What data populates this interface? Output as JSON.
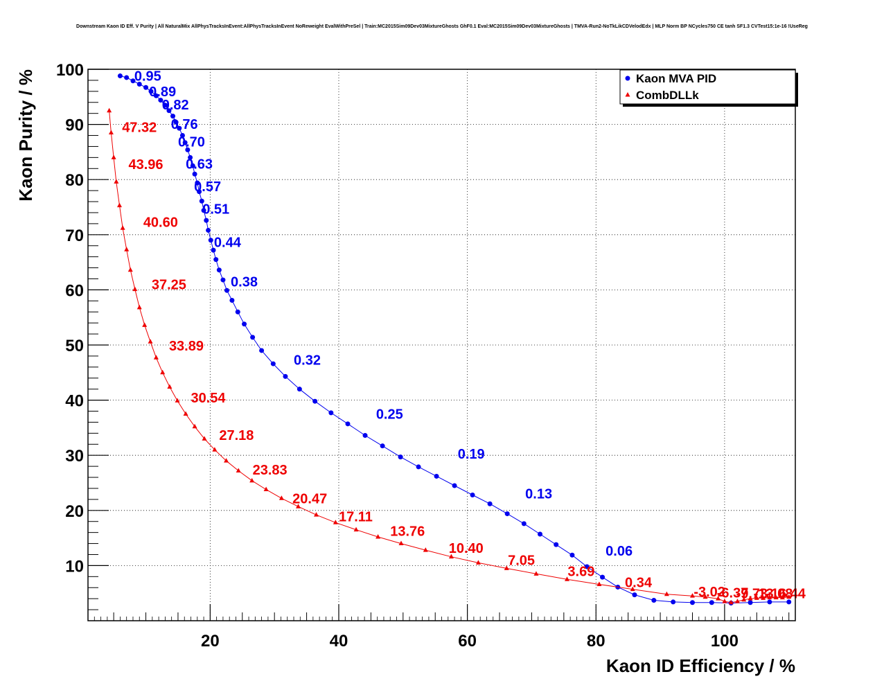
{
  "chart_data": {
    "type": "line",
    "title": "Downstream Kaon ID Eff. V Purity | All NaturalMix AllPhysTracksInEvent:AllPhysTracksInEvent NoReweight EvalWithPreSel | Train:MC2015Sim09Dev03MixtureGhosts GhF0.1 Eval:MC2015Sim09Dev03MixtureGhosts | TMVA-Run2-NoTkLikCDVelodEdx | MLP Norm BP NCycles750 CE tanh SF1.3 CVTest15:1e-16 !UseReg",
    "xlabel": "Kaon ID Efficiency / %",
    "ylabel": "Kaon Purity / %",
    "xlim": [
      1,
      111
    ],
    "ylim": [
      0,
      100
    ],
    "xticks": [
      "20",
      "40",
      "60",
      "80",
      "100"
    ],
    "yticks": [
      "10",
      "20",
      "30",
      "40",
      "50",
      "60",
      "70",
      "80",
      "90",
      "100"
    ],
    "grid": true,
    "legend_position": "top-right",
    "series": [
      {
        "name": "Kaon MVA PID",
        "color": "#0000ee",
        "marker": "circle",
        "points": [
          [
            6,
            98.8
          ],
          [
            7,
            98.5
          ],
          [
            8,
            97.9
          ],
          [
            9,
            97.3
          ],
          [
            10,
            96.7
          ],
          [
            10.8,
            96.0
          ],
          [
            11.6,
            95.2
          ],
          [
            12.3,
            94.4
          ],
          [
            13,
            93.5
          ],
          [
            13.6,
            92.5
          ],
          [
            14.2,
            91.5
          ],
          [
            14.7,
            90.4
          ],
          [
            15.2,
            89.3
          ],
          [
            15.7,
            88.0
          ],
          [
            16.1,
            86.7
          ],
          [
            16.5,
            85.4
          ],
          [
            16.9,
            84.0
          ],
          [
            17.3,
            82.5
          ],
          [
            17.6,
            81.0
          ],
          [
            18,
            79.4
          ],
          [
            18.3,
            77.8
          ],
          [
            18.7,
            76.1
          ],
          [
            19,
            74.4
          ],
          [
            19.4,
            72.6
          ],
          [
            19.7,
            70.8
          ],
          [
            20.1,
            69
          ],
          [
            20.5,
            67.2
          ],
          [
            20.9,
            65.5
          ],
          [
            21.4,
            63.6
          ],
          [
            22,
            61.8
          ],
          [
            22.6,
            59.9
          ],
          [
            23.4,
            58.1
          ],
          [
            24.3,
            56
          ],
          [
            25.3,
            53.8
          ],
          [
            26.6,
            51.4
          ],
          [
            28,
            49
          ],
          [
            29.8,
            46.6
          ],
          [
            31.7,
            44.3
          ],
          [
            33.9,
            42
          ],
          [
            36.3,
            39.8
          ],
          [
            38.8,
            37.7
          ],
          [
            41.4,
            35.7
          ],
          [
            44.1,
            33.6
          ],
          [
            46.8,
            31.7
          ],
          [
            49.6,
            29.7
          ],
          [
            52.4,
            27.9
          ],
          [
            55.2,
            26.2
          ],
          [
            58,
            24.5
          ],
          [
            60.8,
            22.8
          ],
          [
            63.5,
            21.2
          ],
          [
            66.2,
            19.4
          ],
          [
            68.8,
            17.6
          ],
          [
            71.3,
            15.7
          ],
          [
            73.8,
            13.8
          ],
          [
            76.3,
            11.9
          ],
          [
            78.6,
            9.8
          ],
          [
            81,
            7.9
          ],
          [
            83.4,
            6.1
          ],
          [
            86,
            4.7
          ],
          [
            89,
            3.7
          ],
          [
            92,
            3.4
          ],
          [
            95,
            3.3
          ],
          [
            98,
            3.3
          ],
          [
            101,
            3.2
          ],
          [
            104,
            3.3
          ],
          [
            107,
            3.4
          ],
          [
            110,
            3.4
          ]
        ],
        "cut_labels": [
          {
            "text": "0.95",
            "x": 8.2,
            "y": 97.9
          },
          {
            "text": "0.89",
            "x": 10.5,
            "y": 95.1
          },
          {
            "text": "0.82",
            "x": 12.5,
            "y": 92.7
          },
          {
            "text": "0.76",
            "x": 13.9,
            "y": 89.2
          },
          {
            "text": "0.70",
            "x": 15,
            "y": 86
          },
          {
            "text": "0.63",
            "x": 16.2,
            "y": 82
          },
          {
            "text": "0.57",
            "x": 17.5,
            "y": 77.9
          },
          {
            "text": "0.51",
            "x": 18.8,
            "y": 73.8
          },
          {
            "text": "0.44",
            "x": 20.6,
            "y": 67.8
          },
          {
            "text": "0.38",
            "x": 23.2,
            "y": 60.6
          },
          {
            "text": "0.32",
            "x": 33,
            "y": 46.4
          },
          {
            "text": "0.25",
            "x": 45.8,
            "y": 36.6
          },
          {
            "text": "0.19",
            "x": 58.5,
            "y": 29.4
          },
          {
            "text": "0.13",
            "x": 69,
            "y": 22.2
          },
          {
            "text": "0.06",
            "x": 81.5,
            "y": 11.8
          }
        ]
      },
      {
        "name": "CombDLLk",
        "color": "#ee0000",
        "marker": "triangle",
        "points": [
          [
            4.3,
            92.5
          ],
          [
            4.6,
            88.5
          ],
          [
            5,
            84
          ],
          [
            5.4,
            79.6
          ],
          [
            5.9,
            75.3
          ],
          [
            6.4,
            71.2
          ],
          [
            7,
            67.3
          ],
          [
            7.6,
            63.6
          ],
          [
            8.3,
            60.1
          ],
          [
            9,
            56.8
          ],
          [
            9.8,
            53.6
          ],
          [
            10.7,
            50.6
          ],
          [
            11.6,
            47.7
          ],
          [
            12.6,
            45
          ],
          [
            13.7,
            42.4
          ],
          [
            14.9,
            39.9
          ],
          [
            16.2,
            37.5
          ],
          [
            17.6,
            35.2
          ],
          [
            19.1,
            33
          ],
          [
            20.7,
            31
          ],
          [
            22.5,
            29
          ],
          [
            24.4,
            27.2
          ],
          [
            26.5,
            25.4
          ],
          [
            28.7,
            23.8
          ],
          [
            31.1,
            22.2
          ],
          [
            33.7,
            20.7
          ],
          [
            36.5,
            19.2
          ],
          [
            39.5,
            17.8
          ],
          [
            42.7,
            16.5
          ],
          [
            46.1,
            15.2
          ],
          [
            49.7,
            14
          ],
          [
            53.5,
            12.8
          ],
          [
            57.5,
            11.6
          ],
          [
            61.7,
            10.5
          ],
          [
            66.1,
            9.5
          ],
          [
            70.7,
            8.5
          ],
          [
            75.5,
            7.5
          ],
          [
            80.5,
            6.6
          ],
          [
            85.7,
            5.7
          ],
          [
            91,
            4.8
          ],
          [
            95,
            4.5
          ],
          [
            97,
            4.3
          ],
          [
            99,
            4
          ],
          [
            100,
            3.5
          ],
          [
            101,
            3.3
          ],
          [
            102,
            3.5
          ],
          [
            103,
            3.8
          ],
          [
            104,
            4
          ],
          [
            105,
            4.1
          ],
          [
            106,
            4.1
          ],
          [
            107,
            4.2
          ],
          [
            108,
            4.2
          ],
          [
            109,
            4.2
          ],
          [
            110,
            4.3
          ]
        ],
        "cut_labels": [
          {
            "text": "47.32",
            "x": 6.3,
            "y": 88.6
          },
          {
            "text": "43.96",
            "x": 7.3,
            "y": 81.9
          },
          {
            "text": "40.60",
            "x": 9.6,
            "y": 71.4
          },
          {
            "text": "37.25",
            "x": 10.9,
            "y": 60.1
          },
          {
            "text": "33.89",
            "x": 13.6,
            "y": 49
          },
          {
            "text": "30.54",
            "x": 17,
            "y": 39.6
          },
          {
            "text": "27.18",
            "x": 21.4,
            "y": 32.8
          },
          {
            "text": "23.83",
            "x": 26.6,
            "y": 26.5
          },
          {
            "text": "20.47",
            "x": 32.8,
            "y": 21.3
          },
          {
            "text": "17.11",
            "x": 40,
            "y": 18
          },
          {
            "text": "13.76",
            "x": 48,
            "y": 15.4
          },
          {
            "text": "10.40",
            "x": 57.1,
            "y": 12.3
          },
          {
            "text": "7.05",
            "x": 66.3,
            "y": 10.1
          },
          {
            "text": "3.69",
            "x": 75.6,
            "y": 8.1
          },
          {
            "text": "0.34",
            "x": 84.5,
            "y": 6.1
          },
          {
            "text": "-3.02",
            "x": 95.2,
            "y": 4.4
          },
          {
            "text": "-6.37",
            "x": 98.8,
            "y": 4.2
          },
          {
            "text": "-9.73",
            "x": 101.8,
            "y": 4.1
          },
          {
            "text": "-13.08",
            "x": 104.5,
            "y": 4.1
          },
          {
            "text": "-16.44",
            "x": 106.5,
            "y": 4.1
          }
        ]
      }
    ]
  }
}
